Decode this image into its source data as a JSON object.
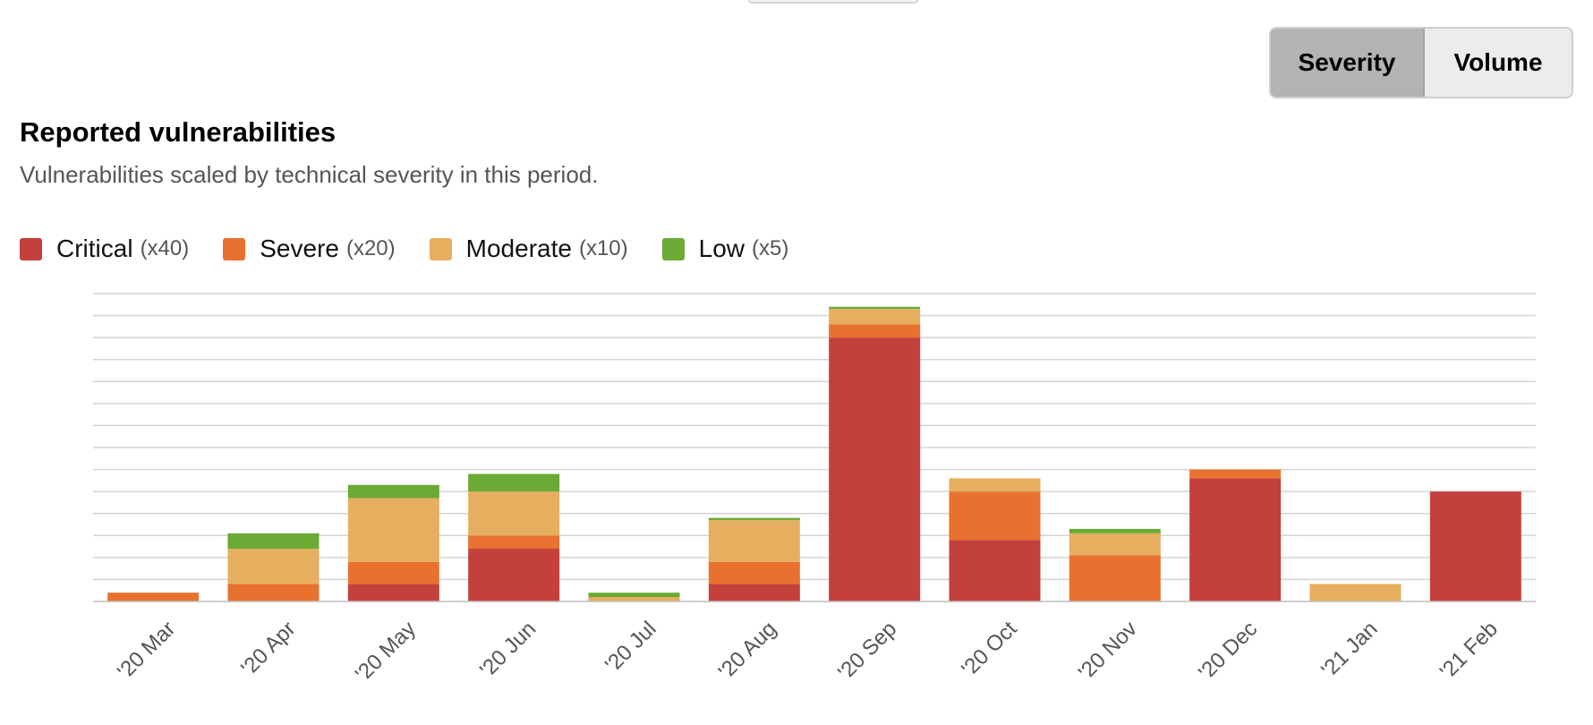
{
  "controls": {
    "severity_label": "Severity",
    "volume_label": "Volume"
  },
  "colors": {
    "critical": "#c4403c",
    "severe": "#e97130",
    "moderate": "#e6ae5f",
    "low": "#6aaa35",
    "grid": "#d4d4d4",
    "axis": "#bdbdbd"
  },
  "chart_data": {
    "type": "bar",
    "stacked": true,
    "title": "Reported vulnerabilities",
    "subtitle": "Vulnerabilities scaled by technical severity in this period.",
    "legend_position": "top-left",
    "grid": true,
    "y_axis_labels": false,
    "ylim": [
      0,
      700
    ],
    "categories": [
      "'20 Mar",
      "'20 Apr",
      "'20 May",
      "'20 Jun",
      "'20 Jul",
      "'20 Aug",
      "'20 Sep",
      "'20 Oct",
      "'20 Nov",
      "'20 Dec",
      "'21 Jan",
      "'21 Feb"
    ],
    "series": [
      {
        "key": "critical",
        "name": "Critical",
        "multiplier": "(x40)",
        "values": [
          0,
          0,
          40,
          120,
          0,
          40,
          600,
          140,
          0,
          280,
          0,
          250
        ]
      },
      {
        "key": "severe",
        "name": "Severe",
        "multiplier": "(x20)",
        "values": [
          20,
          40,
          50,
          30,
          0,
          50,
          30,
          110,
          105,
          20,
          0,
          0
        ]
      },
      {
        "key": "moderate",
        "name": "Moderate",
        "multiplier": "(x10)",
        "values": [
          0,
          80,
          145,
          100,
          10,
          95,
          35,
          30,
          50,
          0,
          40,
          0
        ]
      },
      {
        "key": "low",
        "name": "Low",
        "multiplier": "(x5)",
        "values": [
          0,
          35,
          30,
          40,
          10,
          5,
          5,
          0,
          10,
          0,
          0,
          0
        ]
      }
    ]
  }
}
